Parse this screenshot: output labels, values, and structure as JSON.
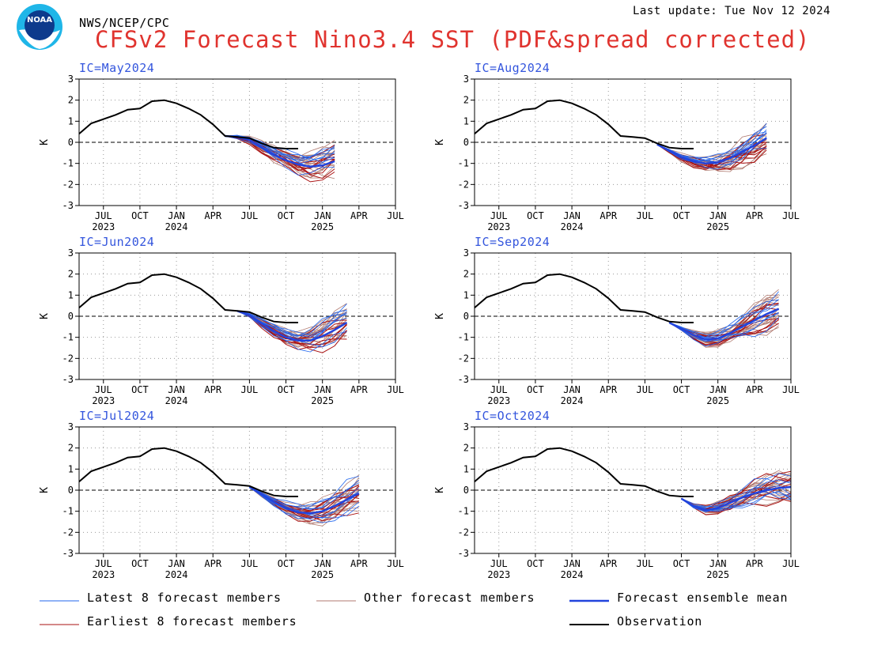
{
  "header": {
    "agency": "NWS/NCEP/CPC",
    "last_update": "Last update: Tue Nov 12 2024",
    "title": "CFSv2 Forecast Nino3.4 SST (PDF&spread corrected)",
    "logo_text": "NOAA"
  },
  "colors": {
    "title": "#e0342f",
    "panel_label": "#3355dd",
    "latest_members": "#2266ee",
    "other_members": "#b07a70",
    "earliest_members": "#aa1111",
    "ensemble_mean": "#2244dd",
    "observation": "#000000"
  },
  "legend": [
    {
      "key": "latest",
      "label": "Latest 8 forecast members"
    },
    {
      "key": "other",
      "label": "Other forecast members"
    },
    {
      "key": "mean",
      "label": "Forecast ensemble mean"
    },
    {
      "key": "earliest",
      "label": "Earliest 8 forecast members"
    },
    {
      "key": "obs",
      "label": "Observation"
    }
  ],
  "chart_data": {
    "type": "line",
    "ylabel": "K",
    "ylim": [
      -3,
      3
    ],
    "yticks": [
      "3",
      "2",
      "1",
      "0",
      "-1",
      "-2",
      "-3"
    ],
    "xtick_labels": [
      "JUL",
      "OCT",
      "JAN",
      "APR",
      "JUL",
      "OCT",
      "JAN",
      "APR",
      "JUL"
    ],
    "year_labels": [
      "2023",
      "2024",
      "2025"
    ],
    "xrange": [
      "2023-05",
      "2025-07"
    ],
    "grid": true,
    "zero_line": "dashed",
    "observation": {
      "x": [
        "2023-05",
        "2023-06",
        "2023-07",
        "2023-08",
        "2023-09",
        "2023-10",
        "2023-11",
        "2023-12",
        "2024-01",
        "2024-02",
        "2024-03",
        "2024-04",
        "2024-05",
        "2024-06",
        "2024-07",
        "2024-08",
        "2024-09",
        "2024-10",
        "2024-11"
      ],
      "y": [
        0.4,
        0.9,
        1.1,
        1.3,
        1.55,
        1.6,
        1.95,
        2.0,
        1.85,
        1.6,
        1.3,
        0.85,
        0.3,
        0.25,
        0.2,
        -0.05,
        -0.25,
        -0.3,
        -0.3
      ]
    },
    "panels": [
      {
        "label": "IC=May2024",
        "ensemble_mean": {
          "x": [
            "2024-05",
            "2024-06",
            "2024-07",
            "2024-08",
            "2024-09",
            "2024-10",
            "2024-11",
            "2024-12",
            "2025-01",
            "2025-02"
          ],
          "y": [
            0.3,
            0.25,
            0.1,
            -0.25,
            -0.6,
            -0.85,
            -1.05,
            -1.15,
            -1.1,
            -0.9
          ]
        }
      },
      {
        "label": "IC=Aug2024",
        "ensemble_mean": {
          "x": [
            "2024-08",
            "2024-09",
            "2024-10",
            "2024-11",
            "2024-12",
            "2025-01",
            "2025-02",
            "2025-03",
            "2025-04",
            "2025-05"
          ],
          "y": [
            -0.1,
            -0.4,
            -0.7,
            -0.9,
            -1.0,
            -0.95,
            -0.75,
            -0.45,
            -0.15,
            0.2
          ]
        }
      },
      {
        "label": "IC=Jun2024",
        "ensemble_mean": {
          "x": [
            "2024-06",
            "2024-07",
            "2024-08",
            "2024-09",
            "2024-10",
            "2024-11",
            "2024-12",
            "2025-01",
            "2025-02",
            "2025-03"
          ],
          "y": [
            0.25,
            0.05,
            -0.35,
            -0.7,
            -1.0,
            -1.15,
            -1.15,
            -0.95,
            -0.65,
            -0.3
          ]
        }
      },
      {
        "label": "IC=Sep2024",
        "ensemble_mean": {
          "x": [
            "2024-09",
            "2024-10",
            "2024-11",
            "2024-12",
            "2025-01",
            "2025-02",
            "2025-03",
            "2025-04",
            "2025-05",
            "2025-06"
          ],
          "y": [
            -0.3,
            -0.6,
            -0.9,
            -1.1,
            -1.05,
            -0.8,
            -0.5,
            -0.2,
            0.1,
            0.35
          ]
        }
      },
      {
        "label": "IC=Jul2024",
        "ensemble_mean": {
          "x": [
            "2024-07",
            "2024-08",
            "2024-09",
            "2024-10",
            "2024-11",
            "2024-12",
            "2025-01",
            "2025-02",
            "2025-03",
            "2025-04"
          ],
          "y": [
            0.15,
            -0.2,
            -0.55,
            -0.85,
            -1.05,
            -1.1,
            -1.0,
            -0.75,
            -0.45,
            -0.15
          ]
        }
      },
      {
        "label": "IC=Oct2024",
        "ensemble_mean": {
          "x": [
            "2024-10",
            "2024-11",
            "2024-12",
            "2025-01",
            "2025-02",
            "2025-03",
            "2025-04",
            "2025-05",
            "2025-06",
            "2025-07"
          ],
          "y": [
            -0.4,
            -0.75,
            -0.95,
            -0.85,
            -0.6,
            -0.35,
            -0.15,
            0.0,
            0.1,
            0.15
          ]
        }
      }
    ]
  }
}
